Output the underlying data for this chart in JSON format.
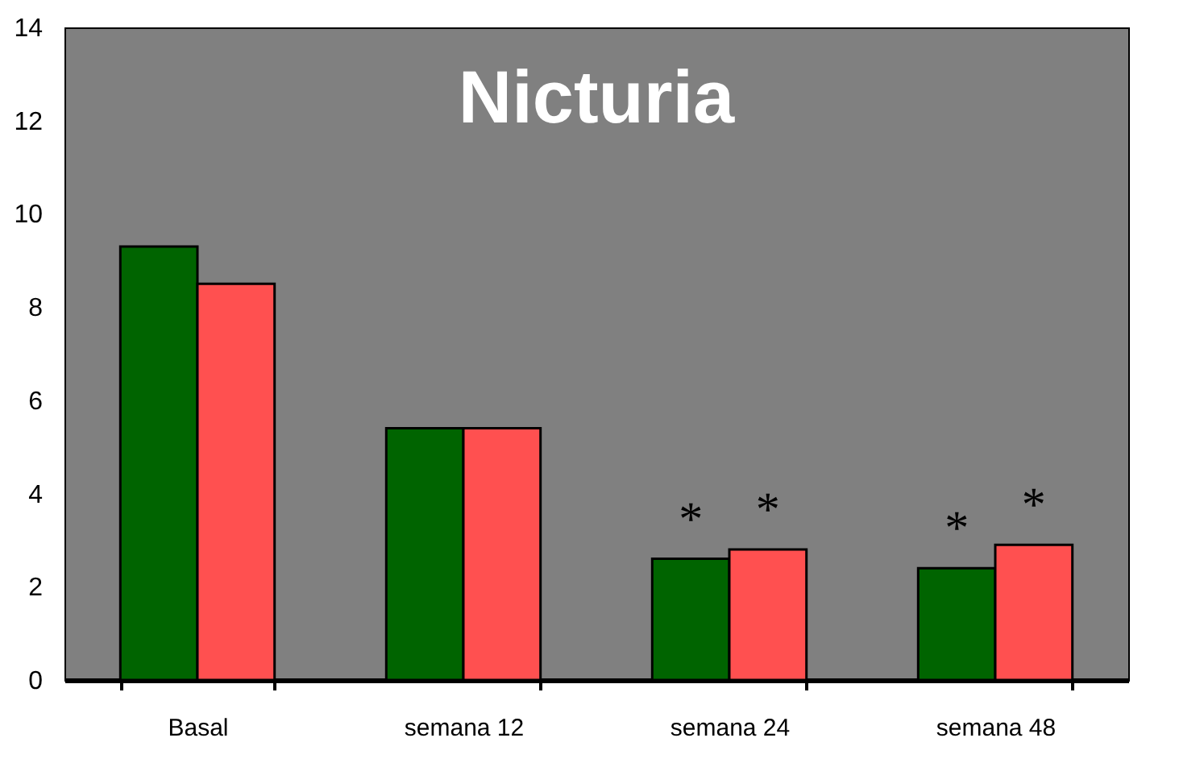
{
  "chart_data": {
    "type": "bar",
    "title": "Nicturia",
    "categories": [
      "Basal",
      "semana 12",
      "semana 24",
      "semana 48"
    ],
    "series": [
      {
        "color": "#006400",
        "values": [
          9.3,
          5.4,
          2.6,
          2.4
        ]
      },
      {
        "color": "#ff5050",
        "values": [
          8.5,
          5.4,
          2.8,
          2.9
        ]
      }
    ],
    "ylim": [
      0,
      14
    ],
    "yticks": [
      0,
      2,
      4,
      6,
      8,
      10,
      12,
      14
    ],
    "annotations": [
      "*",
      "*",
      "*",
      "*"
    ]
  }
}
